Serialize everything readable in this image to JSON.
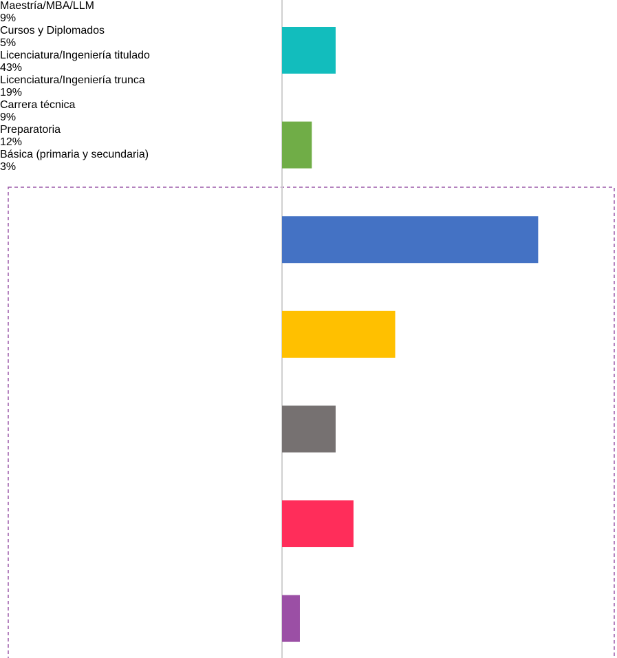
{
  "chart_data": {
    "type": "barh",
    "categories": [
      "Maestría/MBA/LLM",
      "Cursos y Diplomados",
      "Licenciatura/Ingeniería titulado",
      "Licenciatura/Ingeniería trunca",
      "Carrera técnica",
      "Preparatoria",
      "Básica (primaria y secundaria)"
    ],
    "values": [
      9,
      5,
      43,
      19,
      9,
      12,
      3
    ],
    "value_labels": [
      "9%",
      "5%",
      "43%",
      "19%",
      "9%",
      "12%",
      "3%"
    ],
    "colors": [
      "#12bdbd",
      "#70ad47",
      "#4472c4",
      "#ffc000",
      "#767171",
      "#ff2d5a",
      "#9b4fa5"
    ],
    "xlim": [
      0,
      50
    ]
  }
}
